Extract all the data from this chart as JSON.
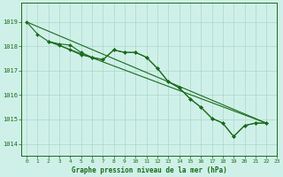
{
  "title": "Graphe pression niveau de la mer (hPa)",
  "bg_color": "#cff0e8",
  "grid_color": "#a8d8cc",
  "line_color": "#1a6b1a",
  "xlim": [
    -0.5,
    23
  ],
  "ylim": [
    1013.5,
    1019.8
  ],
  "yticks": [
    1014,
    1015,
    1016,
    1017,
    1018,
    1019
  ],
  "xticks": [
    0,
    1,
    2,
    3,
    4,
    5,
    6,
    7,
    8,
    9,
    10,
    11,
    12,
    13,
    14,
    15,
    16,
    17,
    18,
    19,
    20,
    21,
    22,
    23
  ],
  "curve1_x": [
    0,
    1,
    2,
    3,
    4,
    5,
    6,
    7,
    8,
    9,
    10,
    11,
    12,
    13,
    14,
    15,
    16,
    17,
    18,
    19,
    20,
    21,
    22
  ],
  "curve1_y": [
    1019.0,
    1018.5,
    1018.2,
    1018.1,
    1018.05,
    1017.75,
    1017.55,
    1017.45,
    1017.85,
    1017.75,
    1017.75,
    1017.55,
    1017.1,
    1016.55,
    1016.3,
    1015.85,
    1015.5,
    1015.05,
    1014.85,
    1014.3,
    1014.75,
    1014.85,
    1014.85
  ],
  "curve2_x": [
    2,
    3,
    4,
    5,
    6,
    7,
    8,
    9,
    10,
    11,
    12,
    13,
    14,
    15,
    16,
    17,
    18,
    19,
    20,
    21,
    22
  ],
  "curve2_y": [
    1018.2,
    1018.05,
    1017.85,
    1017.65,
    1017.55,
    1017.45,
    1017.85,
    1017.75,
    1017.75,
    1017.55,
    1017.1,
    1016.55,
    1016.3,
    1015.85,
    1015.5,
    1015.05,
    1014.85,
    1014.3,
    1014.75,
    1014.85,
    1014.85
  ],
  "line1_x": [
    0,
    22
  ],
  "line1_y": [
    1019.0,
    1014.85
  ],
  "line2_x": [
    2,
    22
  ],
  "line2_y": [
    1018.2,
    1014.85
  ],
  "figsize": [
    3.2,
    2.0
  ],
  "dpi": 100
}
